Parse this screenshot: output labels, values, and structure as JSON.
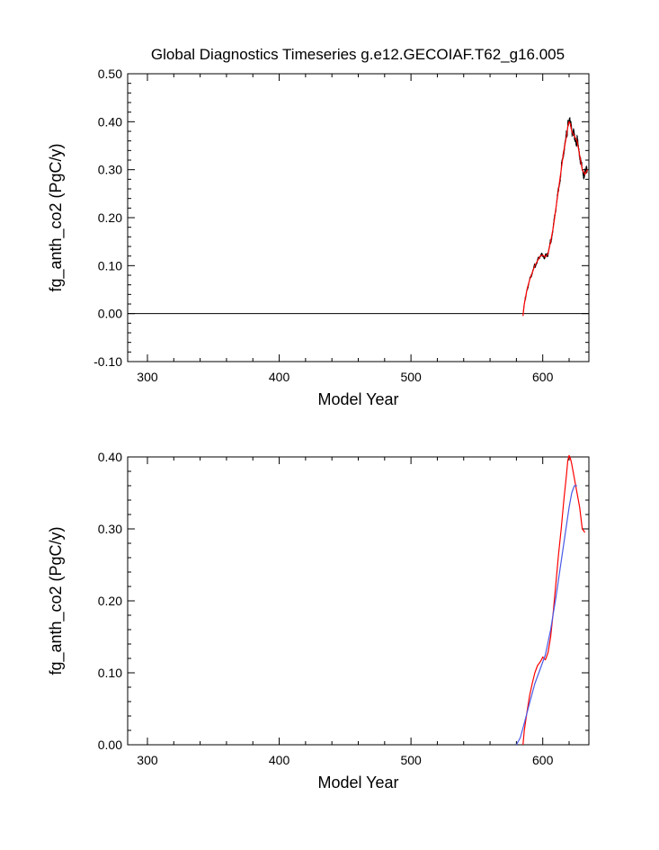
{
  "title": "Global Diagnostics Timeseries g.e12.GECOIAF.T62_g16.005",
  "chart_data": [
    {
      "type": "line",
      "xlabel": "Model Year",
      "ylabel": "fg_anth_co2 (PgC/y)",
      "xlim": [
        285,
        635
      ],
      "ylim": [
        -0.1,
        0.5
      ],
      "xticks": [
        300,
        400,
        500,
        600
      ],
      "yticks": [
        -0.1,
        0.0,
        0.1,
        0.2,
        0.3,
        0.4,
        0.5
      ],
      "ytick_labels": [
        "-0.10",
        "0.00",
        "0.10",
        "0.20",
        "0.30",
        "0.40",
        "0.50"
      ],
      "reference_line": 0.0,
      "series": [
        {
          "color": "#000000",
          "noise_amplitude": 0.015,
          "x": [
            585,
            586,
            587,
            588,
            590,
            592,
            594,
            596,
            598,
            600,
            602,
            604,
            606,
            608,
            610,
            612,
            614,
            616,
            618,
            619,
            620,
            621,
            622,
            624,
            626,
            628,
            630,
            632,
            634
          ],
          "y": [
            -0.005,
            0.02,
            0.035,
            0.05,
            0.07,
            0.085,
            0.1,
            0.11,
            0.12,
            0.122,
            0.118,
            0.125,
            0.15,
            0.18,
            0.22,
            0.26,
            0.3,
            0.34,
            0.37,
            0.39,
            0.4,
            0.395,
            0.38,
            0.37,
            0.36,
            0.33,
            0.3,
            0.29,
            0.3
          ]
        },
        {
          "color": "#ff0000",
          "x": [
            585,
            586,
            587,
            588,
            590,
            592,
            594,
            596,
            598,
            600,
            602,
            604,
            606,
            608,
            610,
            612,
            614,
            616,
            618,
            619,
            620,
            621,
            622,
            624,
            626,
            628,
            630,
            632,
            634
          ],
          "y": [
            -0.005,
            0.02,
            0.035,
            0.05,
            0.07,
            0.085,
            0.1,
            0.11,
            0.12,
            0.122,
            0.118,
            0.125,
            0.15,
            0.18,
            0.22,
            0.26,
            0.3,
            0.34,
            0.37,
            0.39,
            0.4,
            0.395,
            0.38,
            0.37,
            0.36,
            0.33,
            0.3,
            0.29,
            0.3
          ]
        }
      ]
    },
    {
      "type": "line",
      "xlabel": "Model Year",
      "ylabel": "fg_anth_co2 (PgC/y)",
      "xlim": [
        285,
        635
      ],
      "ylim": [
        0.0,
        0.4
      ],
      "xticks": [
        300,
        400,
        500,
        600
      ],
      "yticks": [
        0.0,
        0.1,
        0.2,
        0.3,
        0.4
      ],
      "ytick_labels": [
        "0.00",
        "0.10",
        "0.20",
        "0.30",
        "0.40"
      ],
      "series": [
        {
          "color": "#ff0000",
          "x": [
            585,
            586,
            588,
            590,
            592,
            594,
            596,
            598,
            599,
            600,
            601,
            602,
            604,
            606,
            608,
            610,
            612,
            614,
            616,
            618,
            619,
            620,
            621,
            622,
            623,
            624,
            626,
            628,
            630,
            632
          ],
          "y": [
            0.0,
            0.02,
            0.045,
            0.068,
            0.085,
            0.1,
            0.11,
            0.115,
            0.118,
            0.122,
            0.12,
            0.118,
            0.128,
            0.15,
            0.185,
            0.225,
            0.265,
            0.3,
            0.34,
            0.375,
            0.395,
            0.402,
            0.398,
            0.39,
            0.38,
            0.37,
            0.35,
            0.33,
            0.3,
            0.295
          ]
        },
        {
          "color": "#4a5ae6",
          "x": [
            580,
            583,
            586,
            590,
            594,
            598,
            602,
            606,
            610,
            614,
            618,
            620,
            622,
            624,
            626
          ],
          "y": [
            0.0,
            0.01,
            0.03,
            0.058,
            0.085,
            0.105,
            0.125,
            0.16,
            0.205,
            0.255,
            0.305,
            0.33,
            0.35,
            0.36,
            0.36
          ]
        }
      ]
    }
  ]
}
